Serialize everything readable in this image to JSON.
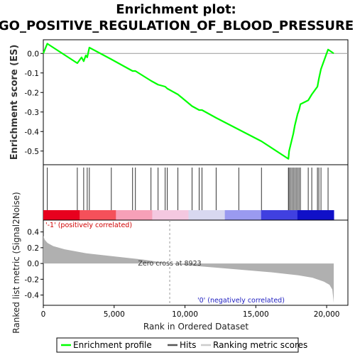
{
  "title_line1": "Enrichment plot:",
  "title_line2": "GO_POSITIVE_REGULATION_OF_BLOOD_PRESSURE",
  "chart_data": [
    {
      "type": "line",
      "panel": "enrichment",
      "ylabel": "Enrichment score (ES)",
      "ylim": [
        -0.57,
        0.07
      ],
      "yticks": [
        "0.0",
        "-0.1",
        "-0.2",
        "-0.3",
        "-0.4",
        "-0.5"
      ],
      "ytick_values": [
        0.0,
        -0.1,
        -0.2,
        -0.3,
        -0.4,
        -0.5
      ],
      "color": "#00ff00",
      "series": [
        {
          "name": "Enrichment profile",
          "x": [
            0,
            280,
            2400,
            2700,
            2850,
            3000,
            3100,
            3250,
            4800,
            6300,
            6500,
            7600,
            8100,
            8600,
            8750,
            9500,
            10500,
            11000,
            11200,
            12200,
            13800,
            15400,
            17300,
            17350,
            17450,
            17550,
            17650,
            17750,
            17850,
            17950,
            18050,
            18150,
            18700,
            18950,
            19350,
            19450,
            19600,
            20100,
            20500
          ],
          "y": [
            0.0,
            0.05,
            -0.05,
            -0.02,
            -0.04,
            -0.01,
            -0.02,
            0.03,
            -0.03,
            -0.09,
            -0.09,
            -0.14,
            -0.16,
            -0.17,
            -0.18,
            -0.21,
            -0.27,
            -0.29,
            -0.29,
            -0.33,
            -0.39,
            -0.45,
            -0.54,
            -0.5,
            -0.47,
            -0.44,
            -0.41,
            -0.37,
            -0.34,
            -0.31,
            -0.29,
            -0.26,
            -0.24,
            -0.21,
            -0.17,
            -0.13,
            -0.08,
            0.02,
            0.0
          ]
        }
      ]
    },
    {
      "type": "scatter",
      "panel": "hits",
      "series": [
        {
          "name": "Hits",
          "x": [
            280,
            2400,
            2850,
            3100,
            3250,
            4800,
            6300,
            6500,
            7600,
            8100,
            8600,
            8750,
            9500,
            10500,
            11000,
            11200,
            12200,
            13800,
            15400,
            17300,
            17350,
            17450,
            17550,
            17650,
            17750,
            17850,
            17950,
            18050,
            18150,
            18700,
            18950,
            19350,
            19450,
            19600,
            20100
          ]
        }
      ],
      "gradient_stops": [
        "#e8001e",
        "#f5505a",
        "#f7a0b8",
        "#f4c8e0",
        "#d8d8f0",
        "#9a9af0",
        "#4040e0",
        "#1010c8"
      ]
    },
    {
      "type": "area",
      "panel": "ranked_metric",
      "ylabel": "Ranked list metric (Signal2Noise)",
      "xlabel": "Rank in Ordered Dataset",
      "xlim": [
        0,
        21500
      ],
      "ylim": [
        -0.53,
        0.55
      ],
      "xticks": [
        "0",
        "5,000",
        "10,000",
        "15,000",
        "20,000"
      ],
      "xtick_values": [
        0,
        5000,
        10000,
        15000,
        20000
      ],
      "yticks": [
        "0.4",
        "0.2",
        "0.0",
        "-0.2",
        "-0.4"
      ],
      "ytick_values": [
        0.4,
        0.2,
        0.0,
        -0.2,
        -0.4
      ],
      "x": [
        0,
        100,
        300,
        700,
        1500,
        3000,
        5000,
        7000,
        8923,
        10000,
        12000,
        14000,
        16000,
        18000,
        19000,
        19800,
        20200,
        20400,
        20500
      ],
      "values": [
        0.35,
        0.3,
        0.26,
        0.22,
        0.18,
        0.13,
        0.09,
        0.05,
        0.0,
        -0.02,
        -0.05,
        -0.08,
        -0.11,
        -0.15,
        -0.18,
        -0.23,
        -0.27,
        -0.33,
        -0.5
      ],
      "color": "#b0b0b0",
      "zero_cross": 8923,
      "zero_cross_label": "Zero cross at 8923",
      "pos_label": "'-1' (positively correlated)",
      "neg_label": "'0' (negatively correlated)"
    }
  ],
  "legend": [
    {
      "label": "Enrichment profile",
      "color": "#00ff00"
    },
    {
      "label": "Hits",
      "color": "#555555"
    },
    {
      "label": "Ranking metric scores",
      "color": "#cccccc"
    }
  ]
}
